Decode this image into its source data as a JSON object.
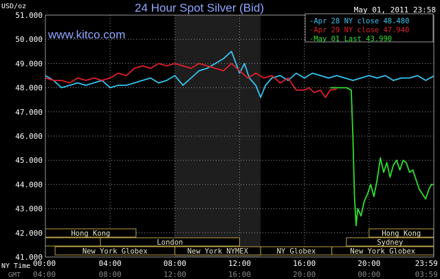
{
  "header": {
    "unit": "USD/oz",
    "title": "24 Hour Spot Silver (Bid)",
    "timestamp": "May 01, 2011 23:58",
    "watermark": "www.kitco.com"
  },
  "legend": {
    "items": [
      {
        "label": "Apr 28 NY close 48.480",
        "color": "#37c4f0"
      },
      {
        "label": "Apr 29 NY close 47.940",
        "color": "#e0202a"
      },
      {
        "label": "May 01 Last 43.990",
        "color": "#30e030"
      }
    ]
  },
  "time_axis": {
    "ny_label": "NY Time",
    "gmt_label": "GMT",
    "ny_ticks": [
      "00:00",
      "04:00",
      "08:00",
      "12:00",
      "16:00",
      "20:00",
      "23:59"
    ],
    "gmt_ticks": [
      "04:00",
      "08:00",
      "12:00",
      "16:00",
      "20:00",
      "00:00",
      "03:59"
    ]
  },
  "sessions": [
    {
      "name": "Hong Kong"
    },
    {
      "name": "London"
    },
    {
      "name": "New York Globex"
    },
    {
      "name": "New York NYMEX"
    },
    {
      "name": "NY Globex"
    },
    {
      "name": "Hong Kong"
    },
    {
      "name": "Sydney"
    },
    {
      "name": "New York Globex"
    }
  ],
  "colors": {
    "background": "#000000",
    "plot_bg": "#000000",
    "shaded": "#1e1e1e",
    "grid": "#9a9a9a",
    "axis_text": "#ffffff",
    "gmt_text": "#888888",
    "title": "#8ea7ff",
    "session_border": "#b89f4a"
  },
  "chart_data": {
    "type": "line",
    "title": "24 Hour Spot Silver (Bid)",
    "ylabel": "USD/oz",
    "ylim": [
      41.0,
      51.0
    ],
    "y_ticks": [
      "41.000",
      "42.000",
      "43.000",
      "44.000",
      "45.000",
      "46.000",
      "47.000",
      "48.000",
      "49.000",
      "50.000",
      "51.000"
    ],
    "xlim_hours": [
      0,
      24
    ],
    "series": [
      {
        "name": "Apr 28 NY close 48.480",
        "color": "#37c4f0",
        "x": [
          0,
          0.5,
          1,
          1.5,
          2,
          2.5,
          3,
          3.5,
          4,
          4.5,
          5,
          5.5,
          6,
          6.5,
          7,
          7.5,
          8,
          8.5,
          9,
          9.5,
          10,
          10.5,
          11,
          11.5,
          12,
          12.3,
          12.6,
          13,
          13.3,
          13.6,
          14,
          14.5,
          15,
          15.5,
          16,
          16.5,
          17,
          17.5,
          18,
          18.5,
          19,
          19.5,
          20,
          20.5,
          21,
          21.5,
          22,
          22.5,
          23,
          23.5,
          23.99
        ],
        "y": [
          48.5,
          48.3,
          48.0,
          48.1,
          48.2,
          48.1,
          48.2,
          48.3,
          48.0,
          48.1,
          48.1,
          48.2,
          48.3,
          48.4,
          48.2,
          48.3,
          48.5,
          48.1,
          48.4,
          48.7,
          48.8,
          49.0,
          49.2,
          49.5,
          48.6,
          49.0,
          48.4,
          48.1,
          47.6,
          48.1,
          48.4,
          48.5,
          48.3,
          48.6,
          48.4,
          48.6,
          48.5,
          48.4,
          48.5,
          48.4,
          48.3,
          48.4,
          48.5,
          48.4,
          48.5,
          48.3,
          48.4,
          48.4,
          48.5,
          48.3,
          48.48
        ]
      },
      {
        "name": "Apr 29 NY close 47.940",
        "color": "#e0202a",
        "x": [
          0,
          0.5,
          1,
          1.5,
          2,
          2.5,
          3,
          3.5,
          4,
          4.5,
          5,
          5.5,
          6,
          6.5,
          7,
          7.5,
          8,
          8.5,
          9,
          9.5,
          10,
          10.5,
          11,
          11.5,
          12,
          12.5,
          13,
          13.5,
          14,
          14.5,
          15,
          15.5,
          16,
          16.3,
          16.6,
          17,
          17.3,
          17.6,
          18
        ],
        "y": [
          48.4,
          48.3,
          48.3,
          48.2,
          48.4,
          48.3,
          48.4,
          48.3,
          48.4,
          48.6,
          48.5,
          48.8,
          48.9,
          48.8,
          49.0,
          48.9,
          49.0,
          48.9,
          48.8,
          49.0,
          48.9,
          48.8,
          48.7,
          49.0,
          48.7,
          48.4,
          48.6,
          48.4,
          48.5,
          48.2,
          48.4,
          47.9,
          47.9,
          48.0,
          47.8,
          47.9,
          47.6,
          47.9,
          47.94
        ]
      },
      {
        "name": "May 01 Last 43.990",
        "color": "#30e030",
        "x": [
          17.6,
          18,
          18.3,
          18.6,
          18.9,
          19.0,
          19.1,
          19.2,
          19.3,
          19.5,
          19.7,
          19.9,
          20.1,
          20.3,
          20.5,
          20.7,
          20.9,
          21.1,
          21.3,
          21.5,
          21.7,
          21.9,
          22.1,
          22.3,
          22.5,
          22.7,
          22.9,
          23.1,
          23.3,
          23.5,
          23.7,
          23.85,
          23.99
        ],
        "y": [
          48.0,
          48.0,
          48.0,
          48.0,
          47.9,
          46.0,
          43.5,
          42.3,
          43.0,
          42.7,
          43.3,
          43.6,
          44.0,
          43.5,
          44.2,
          45.1,
          44.5,
          44.9,
          44.3,
          44.8,
          45.0,
          44.6,
          45.0,
          44.9,
          44.5,
          44.6,
          44.2,
          43.8,
          43.6,
          43.4,
          43.8,
          44.0,
          43.99
        ]
      }
    ],
    "shaded_region_hours": [
      8,
      13.3
    ],
    "grid": true,
    "legend_position": "top-right"
  }
}
